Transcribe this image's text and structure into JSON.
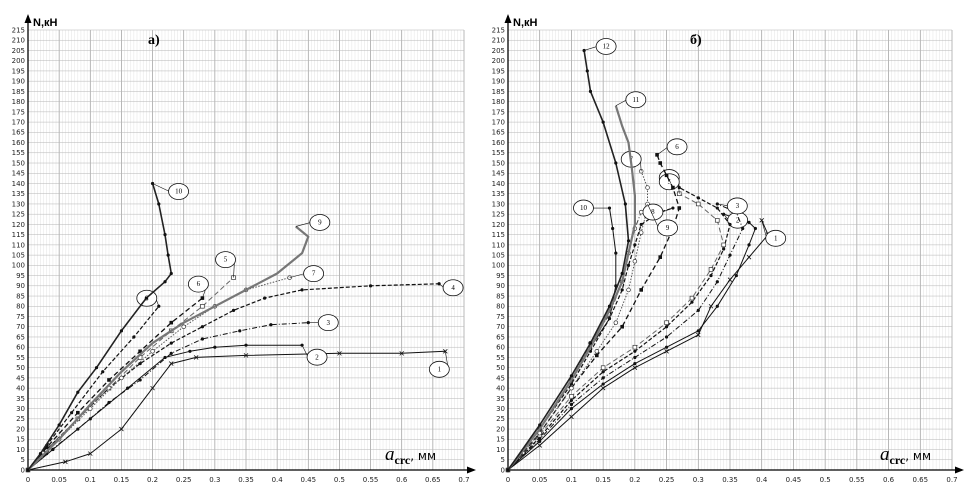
{
  "chart_data": [
    {
      "type": "line",
      "panel_label": "а)",
      "ylabel": "N,кН",
      "xlabel_symbol": "a",
      "xlabel_sub": "crc",
      "xlabel_unit": ", мм",
      "xlim": [
        0,
        0.7
      ],
      "ylim": [
        0,
        215
      ],
      "xticks": [
        "0",
        "0.05",
        "0.1",
        "0.15",
        "0.2",
        "0.25",
        "0.3",
        "0.35",
        "0.4",
        "0.45",
        "0.5",
        "0.55",
        "0.6",
        "0.65",
        "0.7"
      ],
      "yticks": [
        "0",
        "5",
        "10",
        "15",
        "20",
        "25",
        "30",
        "35",
        "40",
        "45",
        "50",
        "55",
        "60",
        "65",
        "70",
        "75",
        "80",
        "85",
        "90",
        "95",
        "100",
        "105",
        "110",
        "115",
        "120",
        "125",
        "130",
        "135",
        "140",
        "145",
        "150",
        "155",
        "160",
        "165",
        "170",
        "175",
        "180",
        "185",
        "190",
        "195",
        "200",
        "205",
        "210",
        "215"
      ],
      "grid": true,
      "series": [
        {
          "name": "1",
          "style": "solid-cross",
          "x": [
            0,
            0.06,
            0.1,
            0.15,
            0.2,
            0.23,
            0.27,
            0.35,
            0.5,
            0.6,
            0.67
          ],
          "y": [
            0,
            4,
            8,
            20,
            40,
            52,
            55,
            56,
            57,
            57,
            58
          ]
        },
        {
          "name": "2",
          "style": "solid-dot",
          "x": [
            0,
            0.04,
            0.1,
            0.16,
            0.22,
            0.26,
            0.3,
            0.35,
            0.44
          ],
          "y": [
            0,
            10,
            25,
            40,
            55,
            58,
            60,
            61,
            61
          ]
        },
        {
          "name": "3",
          "style": "dashdot-dot",
          "x": [
            0,
            0.03,
            0.08,
            0.13,
            0.18,
            0.23,
            0.28,
            0.34,
            0.39,
            0.45
          ],
          "y": [
            0,
            8,
            20,
            33,
            44,
            57,
            64,
            68,
            71,
            72
          ]
        },
        {
          "name": "4",
          "style": "dashed-dot",
          "x": [
            0,
            0.03,
            0.08,
            0.13,
            0.18,
            0.23,
            0.28,
            0.33,
            0.38,
            0.44,
            0.55,
            0.66
          ],
          "y": [
            0,
            10,
            25,
            40,
            52,
            62,
            70,
            78,
            84,
            88,
            90,
            91
          ]
        },
        {
          "name": "5",
          "style": "dashed-open-square",
          "x": [
            0,
            0.03,
            0.08,
            0.13,
            0.18,
            0.23,
            0.28,
            0.33
          ],
          "y": [
            0,
            10,
            25,
            40,
            55,
            68,
            80,
            94
          ]
        },
        {
          "name": "6",
          "style": "dashed-square",
          "x": [
            0,
            0.03,
            0.08,
            0.13,
            0.18,
            0.23,
            0.28
          ],
          "y": [
            0,
            11,
            28,
            44,
            58,
            72,
            84
          ]
        },
        {
          "name": "7",
          "style": "dotted-open-circle",
          "x": [
            0,
            0.05,
            0.1,
            0.15,
            0.2,
            0.25,
            0.3,
            0.35,
            0.42
          ],
          "y": [
            0,
            15,
            30,
            45,
            58,
            70,
            80,
            88,
            94
          ]
        },
        {
          "name": "8",
          "style": "dashed-dot",
          "x": [
            0,
            0.03,
            0.07,
            0.12,
            0.17,
            0.21
          ],
          "y": [
            0,
            12,
            28,
            48,
            65,
            80
          ]
        },
        {
          "name": "9",
          "style": "solid-thick-gray",
          "x": [
            0,
            0.05,
            0.1,
            0.15,
            0.2,
            0.25,
            0.3,
            0.35,
            0.4,
            0.44,
            0.45,
            0.43
          ],
          "y": [
            0,
            15,
            32,
            48,
            62,
            72,
            80,
            88,
            96,
            106,
            114,
            119
          ]
        },
        {
          "name": "10",
          "style": "solid-thick-dot",
          "x": [
            0,
            0.02,
            0.05,
            0.08,
            0.11,
            0.15,
            0.19,
            0.22,
            0.23,
            0.225,
            0.22,
            0.21,
            0.2
          ],
          "y": [
            0,
            8,
            22,
            38,
            50,
            68,
            84,
            92,
            96,
            105,
            115,
            130,
            140
          ]
        }
      ]
    },
    {
      "type": "line",
      "panel_label": "б)",
      "ylabel": "N,кН",
      "xlabel_symbol": "a",
      "xlabel_sub": "crc",
      "xlabel_unit": ", мм",
      "xlim": [
        0,
        0.7
      ],
      "ylim": [
        0,
        215
      ],
      "xticks": [
        "0",
        "0.05",
        "0.1",
        "0.15",
        "0.2",
        "0.25",
        "0.3",
        "0.35",
        "0.4",
        "0.45",
        "0.5",
        "0.55",
        "0.6",
        "0.65",
        "0.7"
      ],
      "yticks": [
        "0",
        "5",
        "10",
        "15",
        "20",
        "25",
        "30",
        "35",
        "40",
        "45",
        "50",
        "55",
        "60",
        "65",
        "70",
        "75",
        "80",
        "85",
        "90",
        "95",
        "100",
        "105",
        "110",
        "115",
        "120",
        "125",
        "130",
        "135",
        "140",
        "145",
        "150",
        "155",
        "160",
        "165",
        "170",
        "175",
        "180",
        "185",
        "190",
        "195",
        "200",
        "205",
        "210",
        "215"
      ],
      "grid": true,
      "series": [
        {
          "name": "1",
          "style": "solid-cross",
          "x": [
            0,
            0.05,
            0.1,
            0.15,
            0.2,
            0.25,
            0.3,
            0.32,
            0.35,
            0.38,
            0.41,
            0.4
          ],
          "y": [
            0,
            12,
            26,
            40,
            50,
            58,
            66,
            80,
            93,
            104,
            115,
            122
          ]
        },
        {
          "name": "2",
          "style": "solid-dot",
          "x": [
            0,
            0.05,
            0.1,
            0.15,
            0.2,
            0.25,
            0.3,
            0.33,
            0.36,
            0.38,
            0.39,
            0.38,
            0.34
          ],
          "y": [
            0,
            14,
            30,
            42,
            52,
            60,
            68,
            80,
            95,
            110,
            118,
            121,
            125
          ]
        },
        {
          "name": "3",
          "style": "dashdot-dot",
          "x": [
            0,
            0.05,
            0.1,
            0.15,
            0.2,
            0.25,
            0.3,
            0.33,
            0.35,
            0.37,
            0.36,
            0.33
          ],
          "y": [
            0,
            15,
            32,
            45,
            55,
            65,
            78,
            92,
            105,
            118,
            126,
            130
          ]
        },
        {
          "name": "4",
          "style": "dashed-dot",
          "x": [
            0,
            0.05,
            0.1,
            0.15,
            0.2,
            0.25,
            0.29,
            0.32,
            0.34,
            0.35,
            0.33,
            0.3,
            0.27
          ],
          "y": [
            0,
            16,
            34,
            48,
            58,
            70,
            82,
            95,
            108,
            120,
            128,
            133,
            138
          ]
        },
        {
          "name": "5",
          "style": "dashed-open-square",
          "x": [
            0,
            0.05,
            0.1,
            0.15,
            0.2,
            0.25,
            0.29,
            0.32,
            0.34,
            0.33,
            0.3,
            0.27
          ],
          "y": [
            0,
            17,
            36,
            50,
            60,
            72,
            84,
            98,
            110,
            122,
            130,
            135
          ]
        },
        {
          "name": "6",
          "style": "dashed-square",
          "x": [
            0,
            0.05,
            0.1,
            0.14,
            0.18,
            0.21,
            0.24,
            0.26,
            0.27,
            0.26,
            0.25,
            0.24,
            0.235
          ],
          "y": [
            0,
            18,
            40,
            56,
            70,
            88,
            104,
            118,
            128,
            138,
            144,
            150,
            154
          ]
        },
        {
          "name": "7",
          "style": "dotted-open-circle",
          "x": [
            0,
            0.05,
            0.1,
            0.14,
            0.17,
            0.19,
            0.2,
            0.21,
            0.22,
            0.22,
            0.21
          ],
          "y": [
            0,
            18,
            40,
            58,
            72,
            88,
            102,
            116,
            128,
            138,
            146
          ]
        },
        {
          "name": "8",
          "style": "dashed-dot",
          "x": [
            0,
            0.05,
            0.1,
            0.13,
            0.16,
            0.18,
            0.19,
            0.2,
            0.21,
            0.24,
            0.26
          ],
          "y": [
            0,
            20,
            42,
            58,
            74,
            88,
            100,
            110,
            120,
            126,
            128
          ]
        },
        {
          "name": "9",
          "style": "dashdot-open-circle",
          "x": [
            0,
            0.05,
            0.1,
            0.13,
            0.16,
            0.18,
            0.19,
            0.2,
            0.21,
            0.22
          ],
          "y": [
            0,
            20,
            44,
            62,
            76,
            92,
            106,
            118,
            126,
            130
          ]
        },
        {
          "name": "10",
          "style": "solid-dot",
          "x": [
            0,
            0.05,
            0.1,
            0.13,
            0.16,
            0.17,
            0.17,
            0.165,
            0.16
          ],
          "y": [
            0,
            20,
            44,
            60,
            74,
            90,
            106,
            118,
            128
          ]
        },
        {
          "name": "11",
          "style": "solid-thick-gray",
          "x": [
            0,
            0.05,
            0.1,
            0.13,
            0.16,
            0.18,
            0.19,
            0.2,
            0.2,
            0.195,
            0.19,
            0.18,
            0.17
          ],
          "y": [
            0,
            20,
            44,
            60,
            78,
            92,
            106,
            120,
            134,
            148,
            160,
            168,
            178
          ]
        },
        {
          "name": "12",
          "style": "solid-thick-dot",
          "x": [
            0,
            0.05,
            0.1,
            0.13,
            0.16,
            0.18,
            0.19,
            0.185,
            0.17,
            0.15,
            0.13,
            0.125,
            0.12
          ],
          "y": [
            0,
            22,
            46,
            62,
            80,
            96,
            112,
            130,
            150,
            170,
            185,
            195,
            205
          ]
        }
      ]
    }
  ]
}
